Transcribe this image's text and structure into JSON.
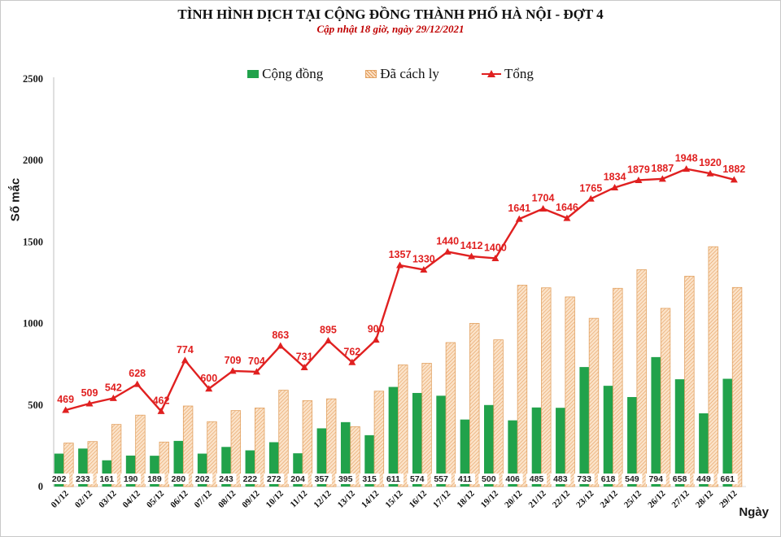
{
  "header": {
    "title": "TÌNH HÌNH DỊCH TẠI CỘNG ĐỒNG THÀNH PHỐ HÀ NỘI - ĐỢT 4",
    "subtitle": "Cập nhật 18 giờ, ngày 29/12/2021"
  },
  "axes": {
    "y_label": "Số mắc",
    "x_label": "Ngày",
    "y_ticks": [
      0,
      500,
      1000,
      1500,
      2000,
      2500
    ],
    "y_max": 2500
  },
  "colors": {
    "green_bar": "#21a24b",
    "hatch_bg": "#fbe3c9",
    "hatch_line": "#e49a58",
    "hatch_border": "#e2a262",
    "red_line": "#e02020",
    "subtitle_red": "#c00000",
    "axis_line": "#bfbfbf",
    "baseline": "#d9d9d9",
    "tick_text": "#1a1a1a",
    "value_label": "#1f1f1f"
  },
  "chart_data": {
    "type": "bar",
    "title": "TÌNH HÌNH DỊCH TẠI CỘNG ĐỒNG THÀNH PHỐ HÀ NỘI - ĐỢT 4",
    "subtitle": "Cập nhật 18 giờ, ngày 29/12/2021",
    "xlabel": "Ngày",
    "ylabel": "Số mắc",
    "ylim": [
      0,
      2500
    ],
    "grid": false,
    "legend_position": "top",
    "categories": [
      "01/12",
      "02/12",
      "03/12",
      "04/12",
      "05/12",
      "06/12",
      "07/12",
      "08/12",
      "09/12",
      "10/12",
      "11/12",
      "12/12",
      "13/12",
      "14/12",
      "15/12",
      "16/12",
      "17/12",
      "18/12",
      "19/12",
      "20/12",
      "21/12",
      "22/12",
      "23/12",
      "24/12",
      "25/12",
      "26/12",
      "27/12",
      "28/12",
      "29/12"
    ],
    "series": [
      {
        "name": "Cộng đồng",
        "type": "bar",
        "color_key": "green_bar",
        "labels_shown": true,
        "values": [
          202,
          233,
          161,
          190,
          189,
          280,
          202,
          243,
          222,
          272,
          204,
          357,
          395,
          315,
          611,
          574,
          557,
          411,
          500,
          406,
          485,
          483,
          733,
          618,
          549,
          794,
          658,
          449,
          661
        ]
      },
      {
        "name": "Đã cách ly",
        "type": "bar",
        "color_key": "hatch",
        "labels_shown": false,
        "values": [
          267,
          276,
          381,
          438,
          273,
          494,
          398,
          466,
          482,
          591,
          527,
          538,
          367,
          585,
          746,
          756,
          883,
          1001,
          900,
          1235,
          1219,
          1163,
          1032,
          1216,
          1330,
          1093,
          1290,
          1471,
          1221
        ]
      },
      {
        "name": "Tổng",
        "type": "line",
        "color_key": "red_line",
        "labels_shown": true,
        "values": [
          469,
          509,
          542,
          628,
          462,
          774,
          600,
          709,
          704,
          863,
          731,
          895,
          762,
          900,
          1357,
          1330,
          1440,
          1412,
          1400,
          1641,
          1704,
          1646,
          1765,
          1834,
          1879,
          1887,
          1948,
          1920,
          1882
        ]
      }
    ]
  }
}
